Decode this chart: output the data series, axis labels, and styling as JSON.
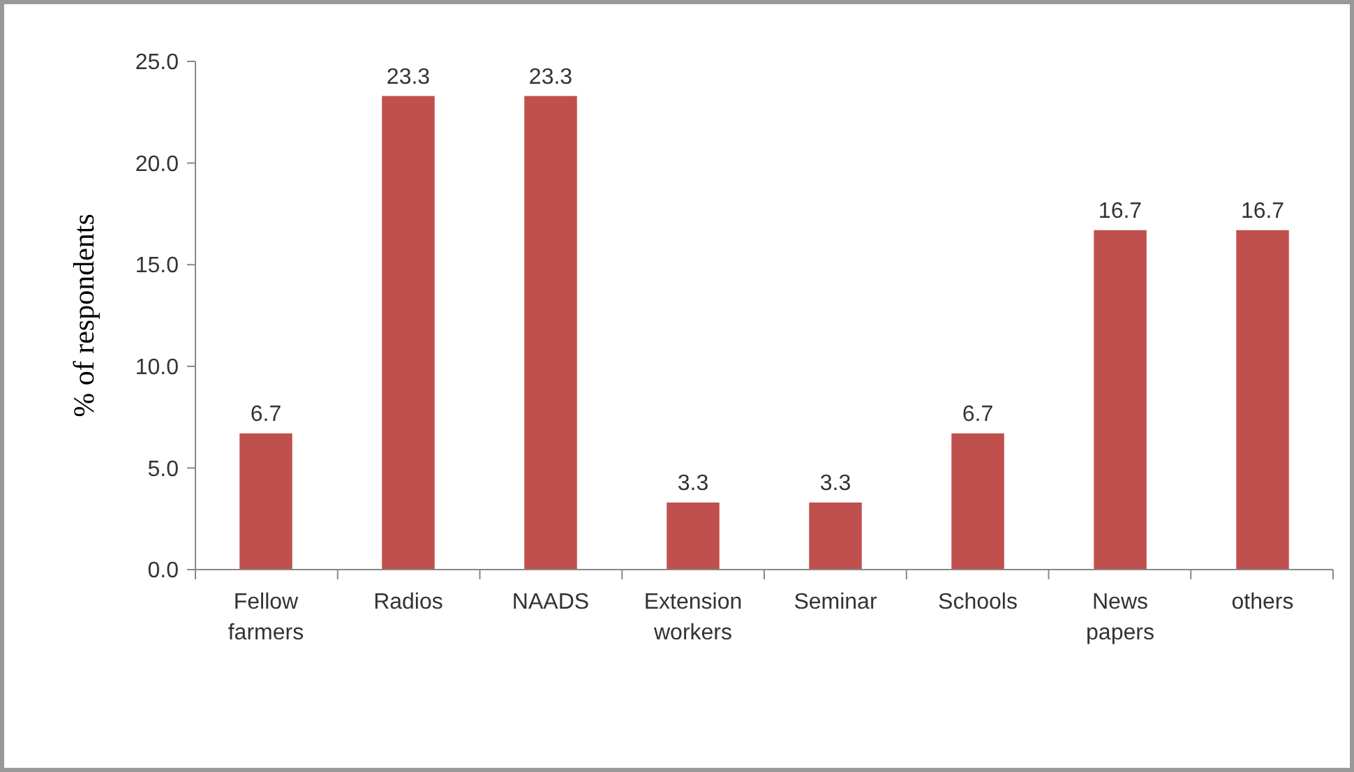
{
  "chart_data": {
    "type": "bar",
    "ylabel": "% of respondents",
    "categories": [
      "Fellow farmers",
      "Radios",
      "NAADS",
      "Extension workers",
      "Seminar",
      "Schools",
      "News papers",
      "others"
    ],
    "values": [
      6.7,
      23.3,
      23.3,
      3.3,
      3.3,
      6.7,
      16.7,
      16.7
    ],
    "color": "#c0504d",
    "ylim": [
      0,
      25
    ],
    "yticks": [
      {
        "value": 0,
        "label": "0.0"
      },
      {
        "value": 5,
        "label": "5.0"
      },
      {
        "value": 10,
        "label": "10.0"
      },
      {
        "value": 15,
        "label": "15.0"
      },
      {
        "value": 20,
        "label": "20.0"
      },
      {
        "value": 25,
        "label": "25.0"
      }
    ],
    "data_labels": true
  }
}
